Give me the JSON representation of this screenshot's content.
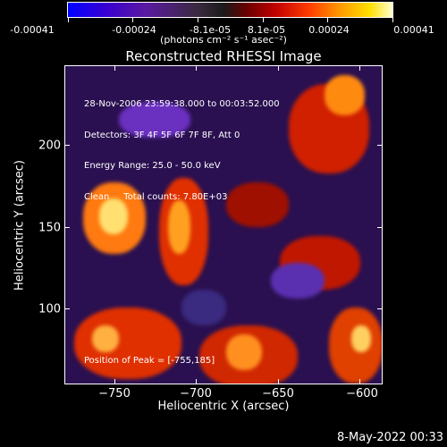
{
  "colorbar": {
    "labels": [
      "-0.00041",
      "-0.00024",
      "-8.1e-05",
      "8.1e-05",
      "0.00024",
      "0.00041"
    ],
    "unit": "(photons cm⁻² s⁻¹ asec⁻²)"
  },
  "plot": {
    "title": "Reconstructed RHESSI Image",
    "info_lines": [
      "28-Nov-2006 23:59:38.000 to 00:03:52.000",
      "Detectors: 3F 4F 5F 6F 7F 8F, Att 0",
      "Energy Range: 25.0 - 50.0 keV",
      "Clean     Total counts: 7.80E+03"
    ],
    "peak_text": "Position of Peak = [-755,185]",
    "x_title": "Heliocentric X (arcsec)",
    "y_title": "Heliocentric Y (arcsec)",
    "x_ticks": [
      "−750",
      "−700",
      "−650",
      "−600"
    ],
    "y_ticks": [
      "100",
      "150",
      "200"
    ]
  },
  "footer": {
    "timestamp": "8-May-2022 00:33"
  }
}
